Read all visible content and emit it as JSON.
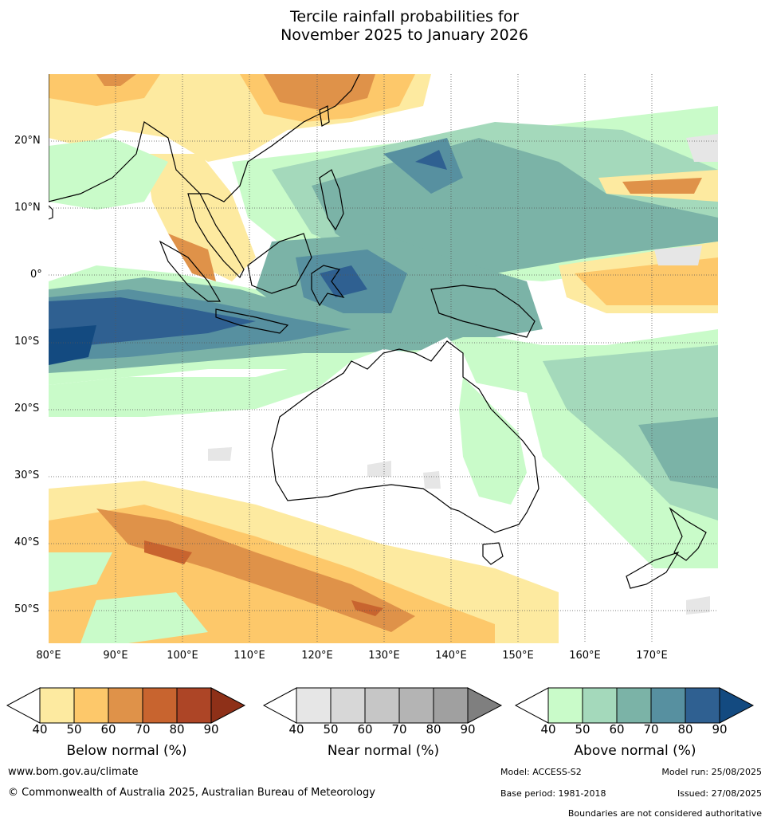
{
  "title": {
    "line1": "Tercile rainfall probabilities for",
    "line2": "November 2025 to January 2026"
  },
  "map": {
    "lat_labels": [
      "20°N",
      "10°N",
      "0°",
      "10°S",
      "20°S",
      "30°S",
      "40°S",
      "50°S"
    ],
    "lon_labels": [
      "80°E",
      "90°E",
      "100°E",
      "110°E",
      "120°E",
      "130°E",
      "140°E",
      "150°E",
      "160°E",
      "170°E"
    ],
    "grid_lines": "dotted"
  },
  "legends": [
    {
      "title": "Below normal (%)",
      "ticks": [
        "40",
        "50",
        "60",
        "70",
        "80",
        "90"
      ],
      "colors": [
        "#ffffff",
        "#fdeaa0",
        "#fdc86a",
        "#df9249",
        "#c8642f",
        "#ad4526",
        "#8e3018"
      ]
    },
    {
      "title": "Near normal (%)",
      "ticks": [
        "40",
        "50",
        "60",
        "70",
        "80",
        "90"
      ],
      "colors": [
        "#ffffff",
        "#e6e6e6",
        "#d7d7d7",
        "#c6c6c6",
        "#b4b4b4",
        "#a0a0a0",
        "#7f7f7f"
      ]
    },
    {
      "title": "Above normal (%)",
      "ticks": [
        "40",
        "50",
        "60",
        "70",
        "80",
        "90"
      ],
      "colors": [
        "#ffffff",
        "#c9fbc9",
        "#a4d9bb",
        "#7bb3a7",
        "#5790a0",
        "#2f6091",
        "#134a80"
      ]
    }
  ],
  "footer": {
    "website": "www.bom.gov.au/climate",
    "copyright": "© Commonwealth of Australia 2025, Australian Bureau of Meteorology",
    "model": "Model: ACCESS-S2",
    "model_run": "Model run: 25/08/2025",
    "base_period": "Base period: 1981-2018",
    "issued": "Issued: 27/08/2025",
    "boundaries_note": "Boundaries are not considered authoritative"
  }
}
